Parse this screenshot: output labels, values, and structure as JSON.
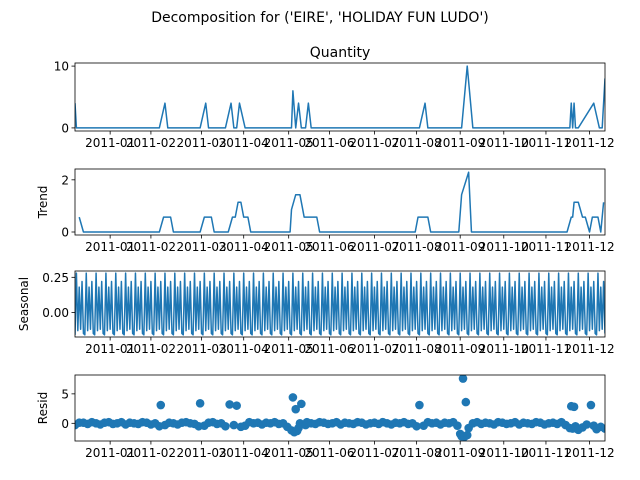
{
  "figure": {
    "suptitle": "Decomposition for ('EIRE', 'HOLIDAY FUN LUDO')"
  },
  "chart_data": [
    {
      "type": "line",
      "title": "Quantity",
      "ylabel": "",
      "ylim": [
        -0.5,
        10.5
      ],
      "yticks": [
        0,
        10
      ],
      "xlim": [
        0,
        377
      ],
      "xtick_labels": [
        "2011-01",
        "2011-02",
        "2011-03",
        "2011-04",
        "2011-05",
        "2011-06",
        "2011-07",
        "2011-08",
        "2011-09",
        "2011-10",
        "2011-11",
        "2011-12"
      ],
      "xtick_positions": [
        25,
        54,
        90,
        120,
        152,
        181,
        213,
        243,
        274,
        305,
        335,
        366
      ],
      "x": [
        0,
        1,
        2,
        60,
        64,
        66,
        68,
        89,
        93,
        95,
        97,
        107,
        111,
        113,
        115,
        117,
        121,
        123,
        125,
        154,
        155,
        157,
        159,
        161,
        164,
        166,
        168,
        245,
        249,
        251,
        253,
        275,
        279,
        283,
        287,
        352,
        353,
        354,
        355,
        356,
        357,
        358,
        369,
        373,
        375,
        377
      ],
      "values": [
        4,
        0,
        0,
        0,
        4,
        0,
        0,
        0,
        4,
        0,
        0,
        0,
        4,
        0,
        0,
        4,
        0,
        0,
        0,
        0,
        6,
        0,
        4,
        0,
        0,
        4,
        0,
        0,
        4,
        0,
        0,
        0,
        10,
        0,
        0,
        0,
        4,
        0,
        4,
        0,
        0,
        0,
        4,
        0,
        0,
        8
      ]
    },
    {
      "type": "line",
      "title": "",
      "ylabel": "Trend",
      "ylim": [
        -0.115,
        2.415
      ],
      "yticks": [
        0,
        2
      ],
      "xlim": [
        0,
        377
      ],
      "x": [
        3,
        6,
        8,
        60,
        63,
        68,
        70,
        89,
        92,
        97,
        99,
        109,
        112,
        114,
        116,
        118,
        120,
        123,
        125,
        153,
        154,
        157,
        158,
        160,
        162,
        163,
        165,
        172,
        174,
        242,
        244,
        251,
        253,
        273,
        275,
        280,
        282,
        350,
        353,
        354,
        355,
        356,
        358,
        361,
        363,
        366,
        368,
        370,
        372,
        374,
        376
      ],
      "values": [
        0.57,
        0,
        0,
        0,
        0.57,
        0.57,
        0,
        0,
        0.57,
        0.57,
        0,
        0,
        0.57,
        0.57,
        1.14,
        1.14,
        0.57,
        0.57,
        0,
        0,
        0.86,
        1.43,
        1.43,
        1.43,
        0.86,
        0.57,
        0.57,
        0.57,
        0,
        0,
        0.57,
        0.57,
        0,
        0,
        1.43,
        2.29,
        0,
        0,
        0.57,
        0.57,
        1.14,
        1.14,
        1.14,
        0.57,
        0.57,
        0,
        0.57,
        0.57,
        0.57,
        0,
        1.14
      ]
    },
    {
      "type": "line",
      "title": "",
      "ylabel": "Seasonal",
      "ylim": [
        -0.175,
        0.295
      ],
      "yticks": [
        0.0,
        0.25
      ],
      "ytick_labels": [
        "0.00",
        "0.25"
      ],
      "xlim": [
        0,
        377
      ],
      "period": 7,
      "pattern": [
        -0.16,
        0.28,
        -0.13,
        0.18,
        -0.12,
        0.22,
        -0.15
      ],
      "n": 378
    },
    {
      "type": "scatter",
      "title": "",
      "ylabel": "Resid",
      "ylim": [
        -3.0,
        8.2
      ],
      "yticks": [
        0,
        5
      ],
      "xlim": [
        0,
        377
      ],
      "x": [
        0,
        3,
        6,
        9,
        12,
        15,
        18,
        21,
        24,
        27,
        30,
        33,
        36,
        39,
        42,
        45,
        48,
        51,
        54,
        57,
        60,
        61,
        64,
        67,
        70,
        73,
        76,
        79,
        82,
        85,
        88,
        89,
        92,
        95,
        98,
        101,
        104,
        107,
        110,
        113,
        115,
        118,
        121,
        124,
        127,
        130,
        133,
        136,
        139,
        142,
        145,
        148,
        151,
        154,
        155,
        156,
        157,
        158,
        159,
        160,
        161,
        164,
        165,
        168,
        171,
        174,
        177,
        180,
        183,
        186,
        189,
        192,
        195,
        198,
        201,
        204,
        207,
        210,
        213,
        216,
        219,
        222,
        225,
        228,
        231,
        234,
        237,
        240,
        243,
        245,
        248,
        251,
        254,
        257,
        260,
        263,
        266,
        269,
        272,
        274,
        275,
        276,
        277,
        278,
        279,
        280,
        283,
        286,
        289,
        292,
        295,
        298,
        301,
        304,
        307,
        310,
        313,
        316,
        319,
        322,
        325,
        328,
        331,
        334,
        337,
        340,
        343,
        346,
        349,
        352,
        353,
        354,
        355,
        356,
        358,
        361,
        364,
        367,
        369,
        371,
        374,
        377
      ],
      "values": [
        -0.3,
        0.1,
        0.1,
        -0.1,
        0.2,
        0.0,
        -0.2,
        0.1,
        0.2,
        -0.1,
        0.0,
        0.2,
        -0.2,
        0.1,
        0.0,
        -0.1,
        0.2,
        0.1,
        -0.2,
        0.0,
        -0.5,
        3.1,
        -0.3,
        0.1,
        0.0,
        -0.2,
        0.1,
        0.2,
        0.0,
        -0.1,
        -0.5,
        3.4,
        -0.4,
        0.1,
        0.2,
        -0.1,
        0.0,
        -0.5,
        3.2,
        -0.3,
        3.0,
        -0.6,
        -0.4,
        0.2,
        0.0,
        0.1,
        -0.2,
        0.1,
        0.0,
        0.2,
        -0.1,
        0.0,
        -0.6,
        -1.2,
        4.4,
        -1.5,
        2.4,
        -1.3,
        -0.8,
        0.0,
        3.3,
        -0.3,
        0.2,
        0.0,
        -0.1,
        0.2,
        0.1,
        -0.1,
        0.0,
        0.2,
        -0.2,
        0.1,
        0.0,
        -0.1,
        0.2,
        0.1,
        -0.2,
        0.0,
        0.1,
        -0.1,
        0.2,
        0.0,
        -0.2,
        0.1,
        0.0,
        0.2,
        -0.1,
        0.0,
        -0.5,
        3.1,
        -0.4,
        0.2,
        0.0,
        0.1,
        -0.2,
        0.1,
        0.0,
        0.2,
        -0.4,
        -1.8,
        -2.2,
        7.6,
        -2.3,
        3.6,
        -2.0,
        -0.8,
        0.0,
        0.2,
        -0.1,
        0.1,
        0.0,
        -0.2,
        0.2,
        0.1,
        -0.1,
        0.0,
        0.2,
        -0.2,
        0.1,
        0.0,
        -0.1,
        0.2,
        0.1,
        -0.2,
        0.0,
        0.1,
        -0.1,
        0.2,
        -0.3,
        -0.8,
        2.9,
        -0.9,
        2.8,
        -0.5,
        -1.1,
        -0.7,
        -0.2,
        3.1,
        -0.4,
        -1.0,
        -0.6,
        -0.9
      ]
    }
  ]
}
